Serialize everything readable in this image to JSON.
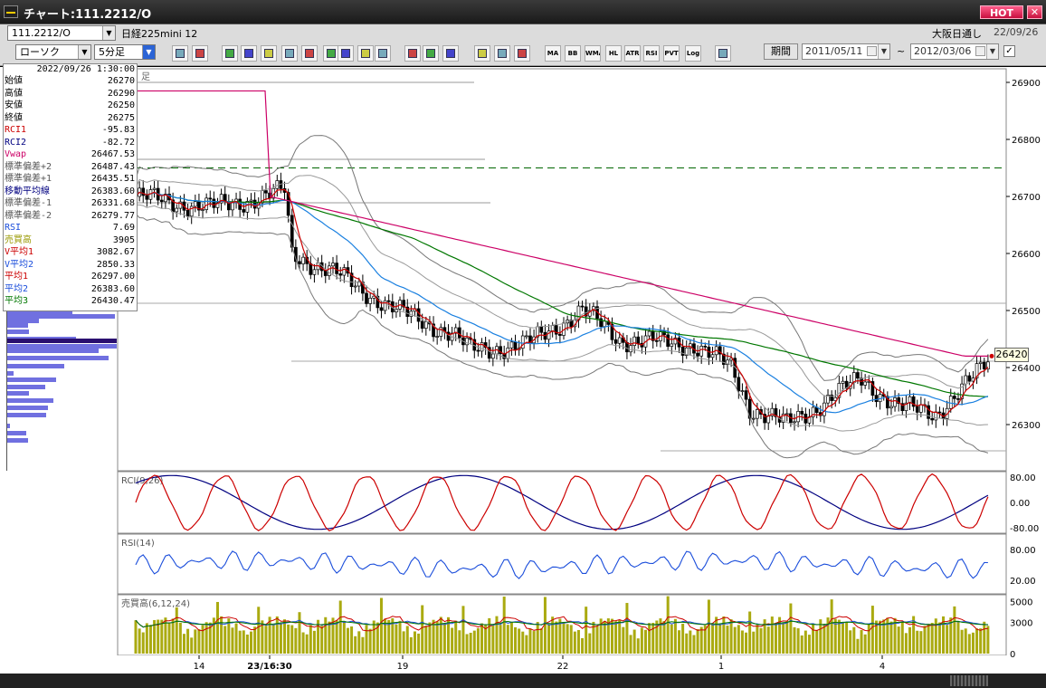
{
  "window": {
    "title": "チャート:111.2212/O",
    "hot_label": "HOT",
    "close_label": "✕"
  },
  "toolbar": {
    "symbol": "111.2212/O",
    "instrument_name": "日経225mini 12",
    "session": "大阪日通し",
    "date_top": "22/09/26",
    "chart_type": "ローソク",
    "interval": "5分足",
    "icons": [
      "zoom-icon",
      "cursor-icon",
      "drawing-icon",
      "indicator-icon",
      "chart-icon",
      "pattern-icon",
      "grid-icon",
      "line-icon",
      "arrow-icon",
      "undo-icon",
      "candle-a-icon",
      "candle-b-icon",
      "all-icon",
      "settings-icon",
      "tool-icon",
      "color-icon",
      "table-icon",
      "MA",
      "BB",
      "WMA",
      "HL",
      "ATR",
      "RSI",
      "PVT",
      "Log",
      "export-icon"
    ],
    "period_label": "期間",
    "date_from": "2011/05/11",
    "date_to": "2012/03/06",
    "tilde": "~"
  },
  "info_panel": {
    "datetime": "2022/09/26 1:30:00",
    "rows": [
      {
        "label": "始値",
        "value": "26270",
        "color": "#000000"
      },
      {
        "label": "高値",
        "value": "26290",
        "color": "#000000"
      },
      {
        "label": "安値",
        "value": "26250",
        "color": "#000000"
      },
      {
        "label": "終値",
        "value": "26275",
        "color": "#000000"
      },
      {
        "label": "RCI1",
        "value": "-95.83",
        "color": "#cc0000"
      },
      {
        "label": "RCI2",
        "value": "-82.72",
        "color": "#000080"
      },
      {
        "label": "Vwap",
        "value": "26467.53",
        "color": "#cc0066"
      },
      {
        "label": "標準偏差+2",
        "value": "26487.43",
        "color": "#555555"
      },
      {
        "label": "標準偏差+1",
        "value": "26435.51",
        "color": "#555555"
      },
      {
        "label": "移動平均線",
        "value": "26383.60",
        "color": "#000080"
      },
      {
        "label": "標準偏差-1",
        "value": "26331.68",
        "color": "#555555"
      },
      {
        "label": "標準偏差-2",
        "value": "26279.77",
        "color": "#555555"
      },
      {
        "label": "RSI",
        "value": "7.69",
        "color": "#1a4ddb"
      },
      {
        "label": "売買高",
        "value": "3905",
        "color": "#999900"
      },
      {
        "label": "V平均1",
        "value": "3082.67",
        "color": "#cc0000"
      },
      {
        "label": "V平均2",
        "value": "2850.33",
        "color": "#1a4ddb"
      },
      {
        "label": "平均1",
        "value": "26297.00",
        "color": "#cc0000"
      },
      {
        "label": "平均2",
        "value": "26383.60",
        "color": "#1a4ddb"
      },
      {
        "label": "平均3",
        "value": "26430.47",
        "color": "#007700"
      }
    ]
  },
  "main_chart": {
    "partial_label": "足",
    "y_ticks": [
      "26900",
      "26800",
      "26700",
      "26600",
      "26500",
      "26400",
      "26300"
    ],
    "last_price": "26420",
    "dashed_level": 26750
  },
  "rci_panel": {
    "label": "RCI(9,26)",
    "ticks": [
      "80.00",
      "0.00",
      "-80.00"
    ]
  },
  "rsi_panel": {
    "label": "RSI(14)",
    "ticks": [
      "80.00",
      "20.00"
    ]
  },
  "volume_panel": {
    "label": "売買高(6,12,24)",
    "ticks": [
      "5000",
      "3000",
      "0"
    ]
  },
  "x_axis": {
    "ticks": [
      "14",
      "23/16:30",
      "19",
      "22",
      "1",
      "4"
    ]
  },
  "colors": {
    "candle_up": "#ffffff",
    "candle_down": "#000000",
    "ma1": "#cc0000",
    "ma2": "#1a80e0",
    "ma3": "#007700",
    "vwap": "#cc0066",
    "band": "#777777",
    "volume": "#aaaa10"
  }
}
